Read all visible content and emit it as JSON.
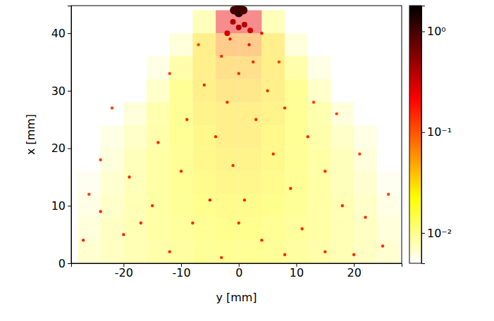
{
  "chart_data": {
    "type": "heatmap",
    "x_label": "y [mm]",
    "y_label": "x [mm]",
    "x": [
      -26,
      -22,
      -18,
      -14,
      -10,
      -6,
      -2,
      2,
      6,
      10,
      14,
      18,
      22,
      26
    ],
    "y": [
      2,
      6,
      10,
      14,
      18,
      22,
      26,
      30,
      34,
      38,
      42
    ],
    "cells": [
      [
        0.009,
        0.011,
        0.013,
        0.015,
        0.017,
        0.019,
        0.02,
        0.02,
        0.019,
        0.017,
        0.015,
        0.013,
        0.011,
        0.009
      ],
      [
        0.008,
        0.011,
        0.013,
        0.016,
        0.018,
        0.02,
        0.022,
        0.022,
        0.02,
        0.018,
        0.016,
        0.013,
        0.011,
        0.008
      ],
      [
        0.007,
        0.01,
        0.013,
        0.016,
        0.019,
        0.022,
        0.024,
        0.024,
        0.022,
        0.019,
        0.016,
        0.013,
        0.01,
        0.007
      ],
      [
        0.006,
        0.009,
        0.012,
        0.016,
        0.02,
        0.024,
        0.026,
        0.026,
        0.024,
        0.02,
        0.016,
        0.012,
        0.009,
        0.006
      ],
      [
        null,
        0.008,
        0.012,
        0.016,
        0.02,
        0.025,
        0.028,
        0.028,
        0.025,
        0.02,
        0.016,
        0.012,
        0.008,
        null
      ],
      [
        null,
        0.007,
        0.01,
        0.015,
        0.02,
        0.025,
        0.03,
        0.03,
        0.025,
        0.02,
        0.015,
        0.01,
        0.007,
        null
      ],
      [
        null,
        null,
        0.008,
        0.014,
        0.02,
        0.028,
        0.03,
        0.03,
        0.028,
        0.02,
        0.014,
        0.008,
        null,
        null
      ],
      [
        null,
        null,
        null,
        0.01,
        0.02,
        0.03,
        0.035,
        0.035,
        0.03,
        0.02,
        0.01,
        null,
        null,
        null
      ],
      [
        null,
        null,
        null,
        0.007,
        0.015,
        0.03,
        0.04,
        0.04,
        0.03,
        0.015,
        0.007,
        null,
        null,
        null
      ],
      [
        null,
        null,
        null,
        null,
        0.008,
        0.03,
        0.06,
        0.06,
        0.03,
        0.008,
        null,
        null,
        null,
        null
      ],
      [
        null,
        null,
        null,
        null,
        null,
        0.012,
        0.25,
        0.25,
        0.012,
        null,
        null,
        null,
        null,
        null
      ]
    ],
    "droplets": {
      "x": [
        0,
        0,
        -0.8,
        0.8,
        -1,
        1,
        0,
        -2,
        2,
        -1.5,
        1.8,
        -3,
        2.5,
        0,
        -6,
        5,
        -2,
        8,
        -9,
        3,
        -4,
        12,
        -14,
        6,
        -1,
        -10,
        15,
        -19,
        9,
        -5,
        1,
        -15,
        18,
        -24,
        22,
        -8,
        11,
        -20,
        4,
        -27,
        25,
        -12,
        15,
        -3,
        20,
        -22,
        17,
        -24,
        21,
        -26,
        26,
        -17,
        8,
        0,
        13,
        -12,
        7,
        -7,
        4
      ],
      "y": [
        44.5,
        43.5,
        44,
        44,
        42,
        41.5,
        41,
        40,
        40.5,
        39,
        38,
        36,
        35,
        33,
        31,
        30,
        28,
        27,
        25,
        25,
        22,
        22,
        21,
        19,
        17,
        16,
        16,
        15,
        13,
        11,
        11,
        10,
        10,
        9,
        8,
        7,
        6,
        5,
        4,
        4,
        3,
        2,
        2,
        1,
        1.5,
        27,
        26,
        18,
        19,
        12,
        12,
        7,
        1.5,
        7,
        28,
        33,
        35,
        38,
        40
      ],
      "values": [
        1.2,
        1.2,
        1,
        1,
        0.4,
        0.4,
        0.4,
        0.3,
        0.3,
        0.2,
        0.2,
        0.15,
        0.15,
        0.15,
        0.15,
        0.15,
        0.15,
        0.15,
        0.15,
        0.15,
        0.15,
        0.15,
        0.15,
        0.15,
        0.15,
        0.15,
        0.15,
        0.15,
        0.15,
        0.18,
        0.15,
        0.15,
        0.15,
        0.15,
        0.15,
        0.15,
        0.15,
        0.15,
        0.15,
        0.15,
        0.15,
        0.15,
        0.15,
        0.15,
        0.15,
        0.12,
        0.12,
        0.12,
        0.12,
        0.12,
        0.12,
        0.15,
        0.15,
        0.15,
        0.12,
        0.12,
        0.12,
        0.12,
        0.2
      ]
    },
    "xlim": [
      -29.1,
      28.3
    ],
    "ylim": [
      0,
      44.8
    ],
    "xticks": [
      -20,
      -10,
      0,
      10,
      20
    ],
    "yticks": [
      0,
      10,
      20,
      30,
      40
    ],
    "colorbar": {
      "log": true,
      "range": [
        0.005,
        1.8
      ],
      "ticks": [
        {
          "value": 0.01,
          "label": "10⁻²"
        },
        {
          "value": 0.1,
          "label": "10⁻¹"
        },
        {
          "value": 1,
          "label": "10⁰"
        }
      ]
    }
  }
}
